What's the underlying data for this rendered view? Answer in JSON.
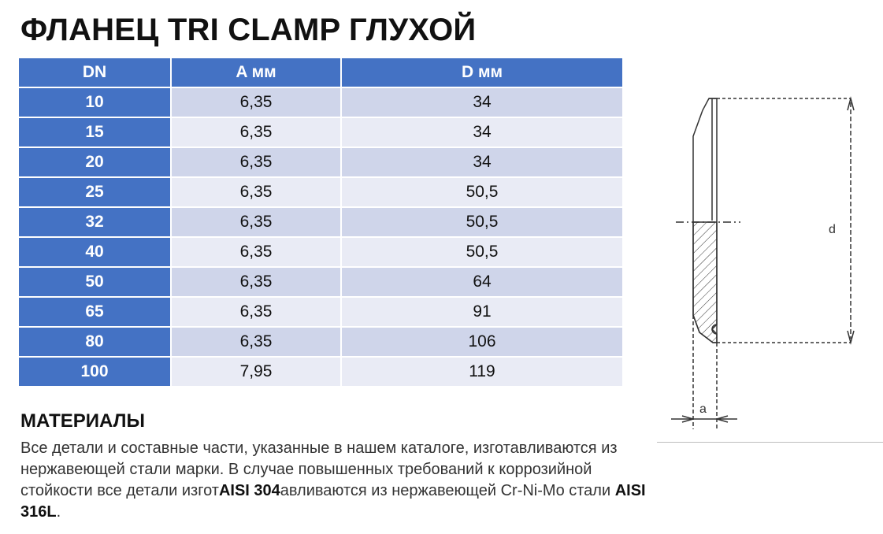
{
  "title": "ФЛАНЕЦ TRI CLAMP ГЛУХОЙ",
  "table": {
    "headers": {
      "dn": "DN",
      "a": "A мм",
      "d": "D мм"
    },
    "rows": [
      {
        "dn": "10",
        "a": "6,35",
        "d": "34"
      },
      {
        "dn": "15",
        "a": "6,35",
        "d": "34"
      },
      {
        "dn": "20",
        "a": "6,35",
        "d": "34"
      },
      {
        "dn": "25",
        "a": "6,35",
        "d": "50,5"
      },
      {
        "dn": "32",
        "a": "6,35",
        "d": "50,5"
      },
      {
        "dn": "40",
        "a": "6,35",
        "d": "50,5"
      },
      {
        "dn": "50",
        "a": "6,35",
        "d": "64"
      },
      {
        "dn": "65",
        "a": "6,35",
        "d": "91"
      },
      {
        "dn": "80",
        "a": "6,35",
        "d": "106"
      },
      {
        "dn": "100",
        "a": "7,95",
        "d": "119"
      }
    ]
  },
  "materials": {
    "heading": "МАТЕРИАЛЫ",
    "text_1": "Все детали и составные части, указанные в нашем каталоге, изготавливаются из нержавеющей стали марки. В случае повышенных требований к коррозийной стойкости все детали изгот",
    "steel_1": "AISI 304",
    "text_2": "авливаются из нержавеющей Cr-Ni-Mo стали ",
    "steel_2": "AISI 316L",
    "text_3": "."
  },
  "drawing": {
    "label_d": "d",
    "label_a": "a",
    "line_color": "#333333"
  },
  "colors": {
    "header_blue": "#4472c4",
    "row_dark": "#cfd5ea",
    "row_light": "#e9ebf5"
  }
}
